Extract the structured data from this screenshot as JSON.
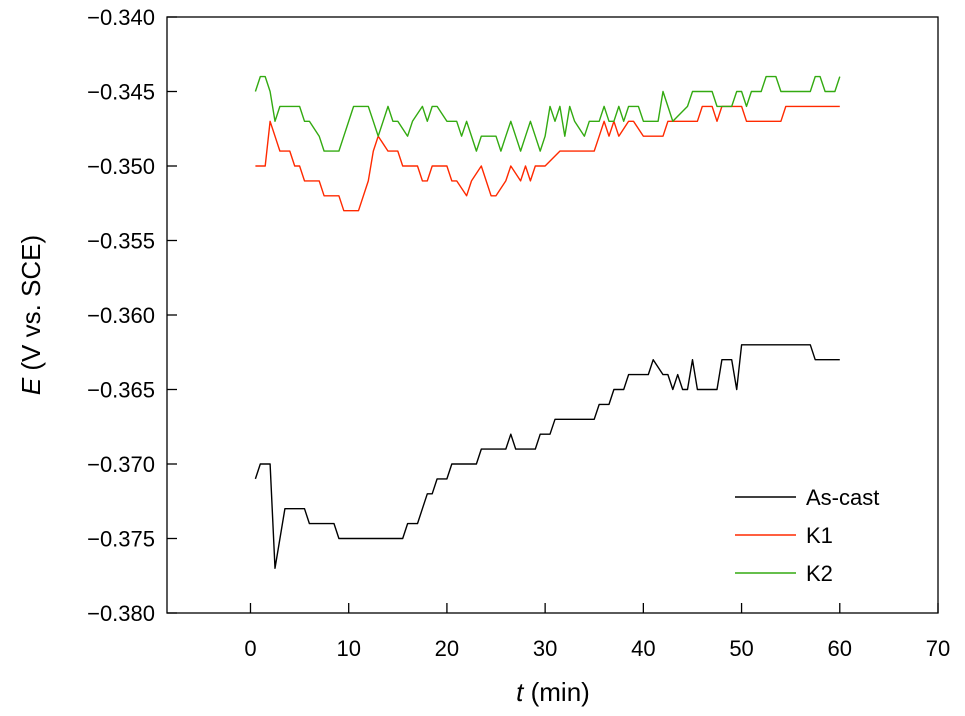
{
  "chart_data": {
    "type": "line",
    "title": "",
    "xlabel_var": "t",
    "xlabel_unit": " (min)",
    "ylabel_var": "E",
    "ylabel_unit": " (V vs. SCE)",
    "xlim": [
      -8.5,
      70
    ],
    "ylim": [
      -0.38,
      -0.34
    ],
    "x_ticks": [
      0,
      10,
      20,
      30,
      40,
      50,
      60,
      70
    ],
    "y_ticks": [
      -0.38,
      -0.375,
      -0.37,
      -0.365,
      -0.36,
      -0.355,
      -0.35,
      -0.345,
      -0.34
    ],
    "x_tick_labels": [
      "0",
      "10",
      "20",
      "30",
      "40",
      "50",
      "60",
      "70"
    ],
    "y_tick_labels": [
      "−0.380",
      "−0.375",
      "−0.370",
      "−0.365",
      "−0.360",
      "−0.355",
      "−0.350",
      "−0.345",
      "−0.340"
    ],
    "legend_position": "bottom-right",
    "grid": false,
    "series": [
      {
        "name": "As-cast",
        "color": "#000000",
        "points": [
          [
            0.5,
            -0.371
          ],
          [
            1.0,
            -0.37
          ],
          [
            2.0,
            -0.37
          ],
          [
            2.5,
            -0.377
          ],
          [
            3.5,
            -0.373
          ],
          [
            5.5,
            -0.373
          ],
          [
            6.0,
            -0.374
          ],
          [
            8.5,
            -0.374
          ],
          [
            9.0,
            -0.375
          ],
          [
            15.5,
            -0.375
          ],
          [
            16.0,
            -0.374
          ],
          [
            17.0,
            -0.374
          ],
          [
            17.5,
            -0.373
          ],
          [
            18.0,
            -0.372
          ],
          [
            18.5,
            -0.372
          ],
          [
            19.0,
            -0.371
          ],
          [
            20.0,
            -0.371
          ],
          [
            20.5,
            -0.37
          ],
          [
            23.0,
            -0.37
          ],
          [
            23.5,
            -0.369
          ],
          [
            26.0,
            -0.369
          ],
          [
            26.5,
            -0.368
          ],
          [
            27.0,
            -0.369
          ],
          [
            29.0,
            -0.369
          ],
          [
            29.5,
            -0.368
          ],
          [
            30.5,
            -0.368
          ],
          [
            31.0,
            -0.367
          ],
          [
            35.0,
            -0.367
          ],
          [
            35.5,
            -0.366
          ],
          [
            36.5,
            -0.366
          ],
          [
            37.0,
            -0.365
          ],
          [
            38.0,
            -0.365
          ],
          [
            38.5,
            -0.364
          ],
          [
            40.5,
            -0.364
          ],
          [
            41.0,
            -0.363
          ],
          [
            42.0,
            -0.364
          ],
          [
            42.5,
            -0.364
          ],
          [
            43.0,
            -0.365
          ],
          [
            43.5,
            -0.364
          ],
          [
            44.0,
            -0.365
          ],
          [
            44.5,
            -0.365
          ],
          [
            45.0,
            -0.363
          ],
          [
            45.5,
            -0.365
          ],
          [
            47.5,
            -0.365
          ],
          [
            48.0,
            -0.363
          ],
          [
            49.0,
            -0.363
          ],
          [
            49.5,
            -0.365
          ],
          [
            50.0,
            -0.362
          ],
          [
            57.0,
            -0.362
          ],
          [
            57.5,
            -0.363
          ],
          [
            60.0,
            -0.363
          ]
        ]
      },
      {
        "name": "K1",
        "color": "#ff2a00",
        "points": [
          [
            0.5,
            -0.35
          ],
          [
            1.5,
            -0.35
          ],
          [
            2.0,
            -0.347
          ],
          [
            2.5,
            -0.348
          ],
          [
            3.0,
            -0.349
          ],
          [
            4.0,
            -0.349
          ],
          [
            4.5,
            -0.35
          ],
          [
            5.0,
            -0.35
          ],
          [
            5.5,
            -0.351
          ],
          [
            7.0,
            -0.351
          ],
          [
            7.5,
            -0.352
          ],
          [
            9.0,
            -0.352
          ],
          [
            9.5,
            -0.353
          ],
          [
            11.0,
            -0.353
          ],
          [
            12.0,
            -0.351
          ],
          [
            12.5,
            -0.349
          ],
          [
            13.0,
            -0.348
          ],
          [
            14.0,
            -0.349
          ],
          [
            15.0,
            -0.349
          ],
          [
            15.5,
            -0.35
          ],
          [
            17.0,
            -0.35
          ],
          [
            17.5,
            -0.351
          ],
          [
            18.0,
            -0.351
          ],
          [
            18.5,
            -0.35
          ],
          [
            20.0,
            -0.35
          ],
          [
            20.5,
            -0.351
          ],
          [
            21.0,
            -0.351
          ],
          [
            22.0,
            -0.352
          ],
          [
            22.5,
            -0.351
          ],
          [
            23.5,
            -0.35
          ],
          [
            24.0,
            -0.351
          ],
          [
            24.5,
            -0.352
          ],
          [
            25.0,
            -0.352
          ],
          [
            26.0,
            -0.351
          ],
          [
            26.5,
            -0.35
          ],
          [
            27.5,
            -0.351
          ],
          [
            28.0,
            -0.35
          ],
          [
            28.5,
            -0.351
          ],
          [
            29.0,
            -0.35
          ],
          [
            30.0,
            -0.35
          ],
          [
            31.5,
            -0.349
          ],
          [
            35.0,
            -0.349
          ],
          [
            35.5,
            -0.348
          ],
          [
            36.0,
            -0.347
          ],
          [
            36.5,
            -0.348
          ],
          [
            37.0,
            -0.347
          ],
          [
            37.5,
            -0.348
          ],
          [
            38.5,
            -0.347
          ],
          [
            39.0,
            -0.347
          ],
          [
            40.0,
            -0.348
          ],
          [
            42.0,
            -0.348
          ],
          [
            42.5,
            -0.347
          ],
          [
            45.5,
            -0.347
          ],
          [
            46.0,
            -0.346
          ],
          [
            47.0,
            -0.346
          ],
          [
            47.5,
            -0.347
          ],
          [
            48.0,
            -0.346
          ],
          [
            50.0,
            -0.346
          ],
          [
            50.5,
            -0.347
          ],
          [
            54.0,
            -0.347
          ],
          [
            54.5,
            -0.346
          ],
          [
            60.0,
            -0.346
          ]
        ]
      },
      {
        "name": "K2",
        "color": "#33aa11",
        "points": [
          [
            0.5,
            -0.345
          ],
          [
            1.0,
            -0.344
          ],
          [
            1.5,
            -0.344
          ],
          [
            2.0,
            -0.345
          ],
          [
            2.5,
            -0.347
          ],
          [
            3.0,
            -0.346
          ],
          [
            5.0,
            -0.346
          ],
          [
            5.5,
            -0.347
          ],
          [
            6.0,
            -0.347
          ],
          [
            7.0,
            -0.348
          ],
          [
            7.5,
            -0.349
          ],
          [
            9.0,
            -0.349
          ],
          [
            9.5,
            -0.348
          ],
          [
            10.5,
            -0.346
          ],
          [
            12.0,
            -0.346
          ],
          [
            12.5,
            -0.347
          ],
          [
            13.0,
            -0.348
          ],
          [
            14.0,
            -0.346
          ],
          [
            14.5,
            -0.347
          ],
          [
            15.0,
            -0.347
          ],
          [
            16.0,
            -0.348
          ],
          [
            16.5,
            -0.347
          ],
          [
            17.5,
            -0.346
          ],
          [
            18.0,
            -0.347
          ],
          [
            18.5,
            -0.346
          ],
          [
            19.0,
            -0.346
          ],
          [
            20.0,
            -0.347
          ],
          [
            21.0,
            -0.347
          ],
          [
            21.5,
            -0.348
          ],
          [
            22.0,
            -0.347
          ],
          [
            23.0,
            -0.349
          ],
          [
            23.5,
            -0.348
          ],
          [
            25.0,
            -0.348
          ],
          [
            25.5,
            -0.349
          ],
          [
            26.0,
            -0.348
          ],
          [
            26.5,
            -0.347
          ],
          [
            27.0,
            -0.348
          ],
          [
            27.5,
            -0.349
          ],
          [
            28.0,
            -0.348
          ],
          [
            28.5,
            -0.347
          ],
          [
            29.0,
            -0.348
          ],
          [
            29.5,
            -0.349
          ],
          [
            30.0,
            -0.348
          ],
          [
            30.5,
            -0.346
          ],
          [
            31.0,
            -0.347
          ],
          [
            31.5,
            -0.346
          ],
          [
            32.0,
            -0.348
          ],
          [
            32.5,
            -0.346
          ],
          [
            33.0,
            -0.347
          ],
          [
            34.0,
            -0.348
          ],
          [
            34.5,
            -0.347
          ],
          [
            35.5,
            -0.347
          ],
          [
            36.0,
            -0.346
          ],
          [
            36.5,
            -0.347
          ],
          [
            37.0,
            -0.347
          ],
          [
            37.5,
            -0.346
          ],
          [
            38.0,
            -0.347
          ],
          [
            38.5,
            -0.346
          ],
          [
            39.5,
            -0.346
          ],
          [
            40.0,
            -0.347
          ],
          [
            41.5,
            -0.347
          ],
          [
            42.0,
            -0.345
          ],
          [
            42.5,
            -0.346
          ],
          [
            43.0,
            -0.347
          ],
          [
            44.5,
            -0.346
          ],
          [
            45.0,
            -0.345
          ],
          [
            47.0,
            -0.345
          ],
          [
            47.5,
            -0.346
          ],
          [
            49.0,
            -0.346
          ],
          [
            49.5,
            -0.345
          ],
          [
            50.0,
            -0.345
          ],
          [
            50.5,
            -0.346
          ],
          [
            51.0,
            -0.345
          ],
          [
            52.0,
            -0.345
          ],
          [
            52.5,
            -0.344
          ],
          [
            53.5,
            -0.344
          ],
          [
            54.0,
            -0.345
          ],
          [
            57.0,
            -0.345
          ],
          [
            57.5,
            -0.344
          ],
          [
            58.0,
            -0.344
          ],
          [
            58.5,
            -0.345
          ],
          [
            59.5,
            -0.345
          ],
          [
            60.0,
            -0.344
          ]
        ]
      }
    ]
  }
}
